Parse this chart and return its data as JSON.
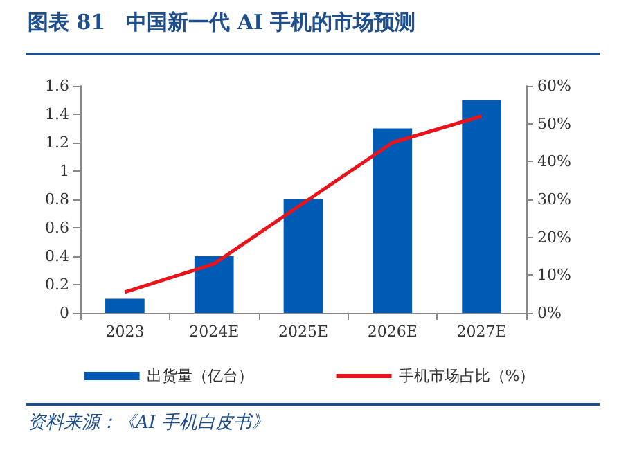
{
  "chart_data": {
    "type": "bar",
    "title": "图表 81　中国新一代 AI 手机的市场预测",
    "categories": [
      "2023",
      "2024E",
      "2025E",
      "2026E",
      "2027E"
    ],
    "series": [
      {
        "name": "出货量（亿台）",
        "color": "#005bb5",
        "values": [
          0.1,
          0.4,
          0.8,
          1.3,
          1.5
        ]
      },
      {
        "name": "手机市场占比（%）",
        "type": "line",
        "color": "#e8141c",
        "axis": "y2",
        "values": [
          5.5,
          13,
          29,
          45,
          52
        ]
      }
    ],
    "ylim": [
      0,
      1.6
    ],
    "yticks": [
      0,
      0.2,
      0.4,
      0.6,
      0.8,
      1,
      1.2,
      1.4,
      1.6
    ],
    "y2lim": [
      0,
      60
    ],
    "y2ticks": [
      {
        "value": 0,
        "label": "0%"
      },
      {
        "value": 10,
        "label": "10%"
      },
      {
        "value": 20,
        "label": "20%"
      },
      {
        "value": 30,
        "label": "30%"
      },
      {
        "value": 40,
        "label": "40%"
      },
      {
        "value": 50,
        "label": "50%"
      },
      {
        "value": 60,
        "label": "60%"
      }
    ],
    "grid": false,
    "legend": "bottom",
    "marker": "none",
    "annotations": [
      "资料来源：《AI 手机白皮书》"
    ]
  }
}
